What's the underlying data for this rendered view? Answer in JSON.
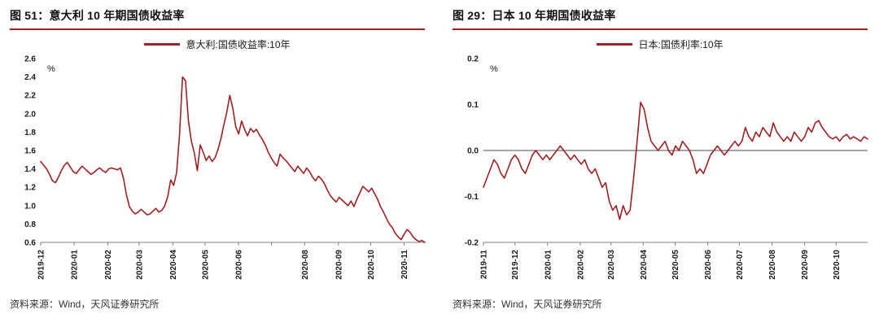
{
  "colors": {
    "accent": "#9E2023",
    "axis": "#808080",
    "zero_line": "#4d4d4d",
    "tick_text": "#1a1a1a"
  },
  "panels": [
    {
      "title": "图 51：意大利 10 年期国债收益率",
      "legend": "意大利:国债收益率:10年",
      "source": "资料来源：Wind，天风证券研究所"
    },
    {
      "title": "图 29：日本 10 年期国债收益率",
      "legend": "日本:国债利率:10年",
      "source": "资料来源：Wind，天风证券研究所"
    }
  ],
  "chart_data": [
    {
      "type": "line",
      "title": "意大利 10 年期国债收益率",
      "ylabel": "%",
      "y_unit": "%",
      "ylim": [
        0.6,
        2.6
      ],
      "y_ticks": [
        2.6,
        2.4,
        2.2,
        2.0,
        1.8,
        1.6,
        1.4,
        1.2,
        1.0,
        0.8,
        0.6
      ],
      "y_decimals": 1,
      "zero_line": false,
      "line_color": "#9E2023",
      "legend_position": "top",
      "grid": false,
      "x_labels": [
        {
          "text": "2019-12",
          "f": 0.0
        },
        {
          "text": "2020-01",
          "f": 0.087
        },
        {
          "text": "2020-02",
          "f": 0.175
        },
        {
          "text": "2020-03",
          "f": 0.256
        },
        {
          "text": "2020-04",
          "f": 0.344
        },
        {
          "text": "2020-05",
          "f": 0.428
        },
        {
          "text": "2020-06",
          "f": 0.515
        },
        {
          "text": "2020-08",
          "f": 0.687
        },
        {
          "text": "2020-09",
          "f": 0.775
        },
        {
          "text": "2020-10",
          "f": 0.859
        },
        {
          "text": "2020-11",
          "f": 0.946
        }
      ],
      "x_tick_marks": [
        0.0,
        0.087,
        0.175,
        0.256,
        0.344,
        0.428,
        0.515,
        0.601,
        0.687,
        0.775,
        0.859,
        0.946
      ],
      "series": [
        {
          "name": "意大利:国债收益率:10年",
          "values": [
            1.48,
            1.44,
            1.4,
            1.34,
            1.27,
            1.25,
            1.31,
            1.38,
            1.44,
            1.47,
            1.42,
            1.37,
            1.35,
            1.39,
            1.43,
            1.4,
            1.37,
            1.34,
            1.36,
            1.39,
            1.41,
            1.38,
            1.36,
            1.4,
            1.41,
            1.4,
            1.39,
            1.41,
            1.3,
            1.12,
            0.99,
            0.94,
            0.91,
            0.93,
            0.96,
            0.93,
            0.9,
            0.91,
            0.94,
            0.97,
            0.93,
            0.95,
            1.0,
            1.1,
            1.28,
            1.22,
            1.36,
            1.78,
            2.4,
            2.36,
            1.92,
            1.7,
            1.57,
            1.38,
            1.66,
            1.58,
            1.49,
            1.54,
            1.48,
            1.52,
            1.61,
            1.73,
            1.88,
            2.02,
            2.2,
            2.06,
            1.86,
            1.78,
            1.92,
            1.83,
            1.76,
            1.84,
            1.8,
            1.83,
            1.77,
            1.72,
            1.66,
            1.58,
            1.52,
            1.47,
            1.43,
            1.56,
            1.52,
            1.49,
            1.45,
            1.41,
            1.37,
            1.43,
            1.39,
            1.35,
            1.41,
            1.37,
            1.31,
            1.27,
            1.32,
            1.29,
            1.24,
            1.17,
            1.11,
            1.07,
            1.04,
            1.09,
            1.06,
            1.03,
            1.0,
            1.05,
            0.99,
            1.07,
            1.14,
            1.21,
            1.18,
            1.15,
            1.19,
            1.13,
            1.07,
            0.99,
            0.93,
            0.86,
            0.8,
            0.76,
            0.7,
            0.66,
            0.63,
            0.69,
            0.74,
            0.71,
            0.66,
            0.63,
            0.61,
            0.62,
            0.6
          ]
        }
      ]
    },
    {
      "type": "line",
      "title": "日本 10 年期国债收益率",
      "ylabel": "%",
      "y_unit": "%",
      "ylim": [
        -0.2,
        0.2
      ],
      "y_ticks": [
        0.2,
        0.1,
        0.0,
        -0.1,
        -0.2
      ],
      "y_decimals": 1,
      "zero_line": true,
      "line_color": "#9E2023",
      "legend_position": "top",
      "grid": false,
      "x_labels": [
        {
          "text": "2019-11",
          "f": 0.0
        },
        {
          "text": "2019-12",
          "f": 0.082
        },
        {
          "text": "2020-01",
          "f": 0.167
        },
        {
          "text": "2020-02",
          "f": 0.252
        },
        {
          "text": "2020-03",
          "f": 0.332
        },
        {
          "text": "2020-04",
          "f": 0.416
        },
        {
          "text": "2020-05",
          "f": 0.499
        },
        {
          "text": "2020-06",
          "f": 0.584
        },
        {
          "text": "2020-07",
          "f": 0.666
        },
        {
          "text": "2020-08",
          "f": 0.751
        },
        {
          "text": "2020-09",
          "f": 0.836
        },
        {
          "text": "2020-10",
          "f": 0.918
        }
      ],
      "x_tick_marks": [
        0.0,
        0.082,
        0.167,
        0.252,
        0.332,
        0.416,
        0.499,
        0.584,
        0.666,
        0.751,
        0.836,
        0.918
      ],
      "series": [
        {
          "name": "日本:国债利率:10年",
          "values": [
            -0.08,
            -0.06,
            -0.04,
            -0.02,
            -0.03,
            -0.05,
            -0.06,
            -0.04,
            -0.02,
            -0.01,
            -0.02,
            -0.04,
            -0.05,
            -0.03,
            -0.01,
            0.0,
            -0.01,
            -0.02,
            -0.01,
            -0.02,
            -0.01,
            0.0,
            0.01,
            0.0,
            -0.01,
            -0.02,
            -0.01,
            -0.02,
            -0.03,
            -0.02,
            -0.04,
            -0.05,
            -0.04,
            -0.06,
            -0.08,
            -0.07,
            -0.11,
            -0.13,
            -0.12,
            -0.15,
            -0.12,
            -0.14,
            -0.13,
            -0.06,
            0.02,
            0.105,
            0.09,
            0.05,
            0.02,
            0.01,
            0.0,
            0.01,
            0.02,
            0.0,
            -0.01,
            0.01,
            0.0,
            0.02,
            0.01,
            0.0,
            -0.02,
            -0.05,
            -0.04,
            -0.05,
            -0.03,
            -0.01,
            0.0,
            0.01,
            0.0,
            -0.01,
            0.0,
            0.01,
            0.02,
            0.01,
            0.02,
            0.05,
            0.03,
            0.02,
            0.04,
            0.03,
            0.05,
            0.04,
            0.03,
            0.06,
            0.04,
            0.03,
            0.02,
            0.03,
            0.02,
            0.04,
            0.03,
            0.02,
            0.03,
            0.05,
            0.04,
            0.06,
            0.065,
            0.05,
            0.04,
            0.03,
            0.025,
            0.03,
            0.02,
            0.03,
            0.035,
            0.025,
            0.03,
            0.025,
            0.02,
            0.03,
            0.025
          ]
        }
      ]
    }
  ]
}
